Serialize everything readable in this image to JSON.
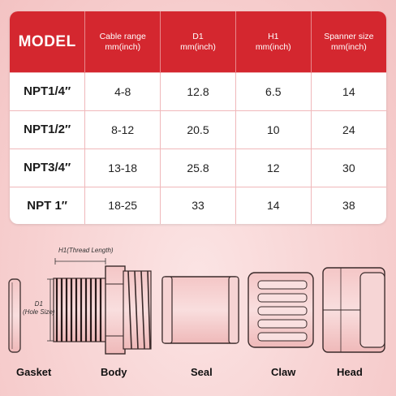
{
  "table": {
    "headers": [
      {
        "line1": "MODEL",
        "line2": ""
      },
      {
        "line1": "Cable range",
        "line2": "mm(inch)"
      },
      {
        "line1": "D1",
        "line2": "mm(inch)"
      },
      {
        "line1": "H1",
        "line2": "mm(inch)"
      },
      {
        "line1": "Spanner size",
        "line2": "mm(inch)"
      }
    ],
    "rows": [
      [
        "NPT1/4″",
        "4-8",
        "12.8",
        "6.5",
        "14"
      ],
      [
        "NPT1/2″",
        "8-12",
        "20.5",
        "10",
        "24"
      ],
      [
        "NPT3/4″",
        "13-18",
        "25.8",
        "12",
        "30"
      ],
      [
        "NPT 1″",
        "18-25",
        "33",
        "14",
        "38"
      ]
    ]
  },
  "annotations": {
    "h1": "H1(Thread Length)",
    "d1_line1": "D1",
    "d1_line2": "(Hole Size)"
  },
  "parts": [
    "Gasket",
    "Body",
    "Seal",
    "Claw",
    "Head"
  ],
  "colors": {
    "header_red": "#d4272f",
    "background_pink": "#f7d0d0"
  }
}
